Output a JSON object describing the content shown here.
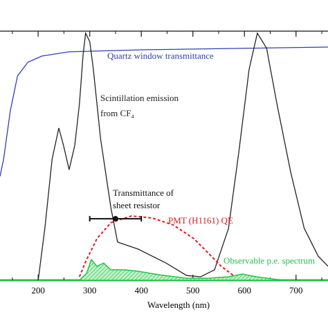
{
  "chart_data": {
    "type": "line",
    "x_label": "Wavelength (nm)",
    "xlim": [
      126,
      762
    ],
    "ylim": [
      0,
      100
    ],
    "xticks": [
      200,
      300,
      400,
      500,
      600,
      700
    ],
    "xminor": [
      150,
      250,
      350,
      450,
      550,
      650,
      750
    ],
    "series": [
      {
        "name": "Quartz window transmittance",
        "color": "#2f3fb4",
        "style": "solid",
        "x": [
          126,
          133,
          146,
          160,
          180,
          207,
          260,
          400,
          762
        ],
        "values": [
          41.7,
          48.6,
          68,
          82,
          87.5,
          90,
          91.7,
          92.5,
          93.6
        ]
      },
      {
        "label_lines": [
          "Scintillation emission",
          "from CF₄"
        ],
        "color": "#222222",
        "style": "solid",
        "x": [
          200,
          213,
          227,
          240,
          249,
          260,
          271,
          280,
          287,
          292,
          300,
          307,
          321,
          341,
          354,
          394,
          448,
          488,
          515,
          542,
          569,
          589,
          609,
          625,
          643,
          663,
          690,
          716,
          743,
          762
        ],
        "values": [
          0,
          20.8,
          48.6,
          61.1,
          54.2,
          44.4,
          54.2,
          70.8,
          90.3,
          99.2,
          95.8,
          84.7,
          56.9,
          29.2,
          15.3,
          12.5,
          6.9,
          1.9,
          1.4,
          4.2,
          20.8,
          51.4,
          84.7,
          99.2,
          93.1,
          70.8,
          43.1,
          20.8,
          9.7,
          5.6
        ]
      },
      {
        "name": "PMT (H1161) QE",
        "color": "#e0191e",
        "style": "dashed",
        "x": [
          280,
          294,
          314,
          341,
          381,
          421,
          462,
          502,
          529,
          555,
          582,
          609
        ],
        "values": [
          1.4,
          8.3,
          16.7,
          23.1,
          25.8,
          25,
          22.2,
          16.7,
          11.1,
          5.6,
          1.4,
          0
        ]
      },
      {
        "name": "Observable p.e. spectrum",
        "color": "#22c34a",
        "style": "area",
        "x": [
          280,
          294,
          303,
          314,
          327,
          341,
          368,
          394,
          435,
          488,
          529,
          569,
          596,
          623,
          663,
          690
        ],
        "values": [
          0,
          2.8,
          8.3,
          5.6,
          6.9,
          4.2,
          4.2,
          3.6,
          2.2,
          0.8,
          0.8,
          1.4,
          2.5,
          1.4,
          0.3,
          0
        ]
      }
    ],
    "marker": {
      "label_lines": [
        "Transmittance of",
        "sheet resistor"
      ],
      "x": 350,
      "x_err": 50,
      "value": 24.7,
      "color": "#111111"
    }
  }
}
